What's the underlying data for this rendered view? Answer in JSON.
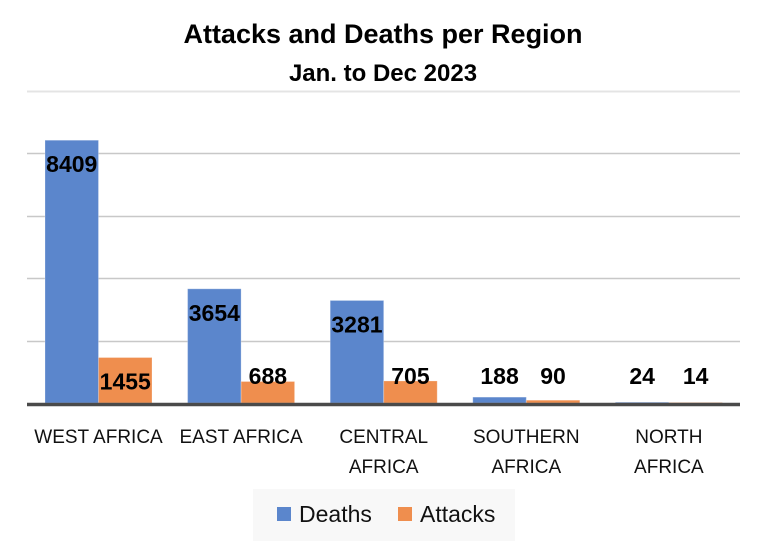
{
  "chart_data": {
    "type": "bar",
    "title": "Attacks and Deaths per Region",
    "subtitle": "Jan. to Dec 2023",
    "categories": [
      [
        "WEST AFRICA"
      ],
      [
        "EAST AFRICA"
      ],
      [
        "CENTRAL",
        "AFRICA"
      ],
      [
        "SOUTHERN",
        "AFRICA"
      ],
      [
        "NORTH",
        "AFRICA"
      ]
    ],
    "series": [
      {
        "name": "Deaths",
        "color": "#5b86cc",
        "values": [
          8409,
          3654,
          3281,
          188,
          24
        ]
      },
      {
        "name": "Attacks",
        "color": "#ef8e4e",
        "values": [
          1455,
          688,
          705,
          90,
          14
        ]
      }
    ],
    "xlabel": "",
    "ylabel": "",
    "ylim": [
      0,
      10000
    ],
    "ytick_step": 2000,
    "y_tick_labels_visible": false,
    "grid": true,
    "legend": "bottom",
    "data_labels": true
  }
}
